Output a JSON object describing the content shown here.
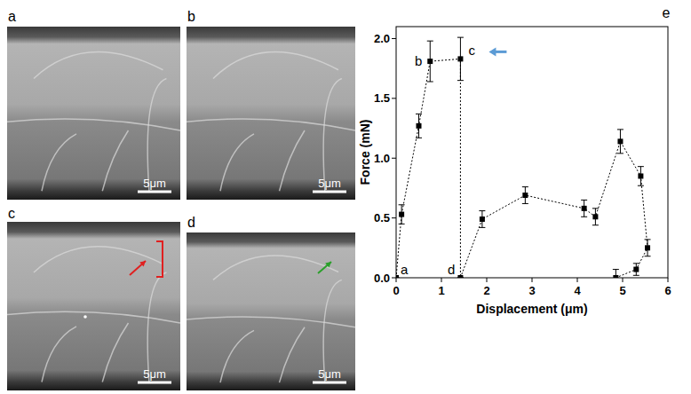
{
  "images": [
    {
      "letter": "a",
      "scale_bar": "5μm"
    },
    {
      "letter": "b",
      "scale_bar": "5μm"
    },
    {
      "letter": "c",
      "scale_bar": "5μm"
    },
    {
      "letter": "d",
      "scale_bar": "5μm"
    }
  ],
  "chart_data": {
    "type": "line",
    "panel_label": "e",
    "x_label": "Displacement (μm)",
    "y_label": "Force (mN)",
    "xlim": [
      0,
      6
    ],
    "ylim": [
      0,
      2.1
    ],
    "xticks": [
      0,
      1,
      2,
      3,
      4,
      5,
      6
    ],
    "yticks": [
      {
        "value": 0,
        "label": "0.0"
      },
      {
        "value": 0.5,
        "label": "0.5"
      },
      {
        "value": 1,
        "label": "1.0"
      },
      {
        "value": 1.5,
        "label": "1.5"
      },
      {
        "value": 2,
        "label": "2.0"
      }
    ],
    "x": [
      0,
      0.12,
      0.5,
      0.75,
      1.42,
      1.42,
      1.9,
      2.85,
      4.15,
      4.4,
      4.95,
      5.4,
      5.55,
      5.3,
      4.85
    ],
    "series": [
      {
        "values": [
          0,
          0.53,
          1.27,
          1.81,
          1.83,
          0,
          0.49,
          0.69,
          0.58,
          0.51,
          1.14,
          0.85,
          0.25,
          0.07,
          0
        ],
        "errors": [
          0,
          0.08,
          0.1,
          0.17,
          0.18,
          0,
          0.07,
          0.07,
          0.07,
          0.07,
          0.1,
          0.08,
          0.07,
          0.05,
          0.07
        ],
        "color": "#000000",
        "marker": "square",
        "line_style": "dotted"
      }
    ],
    "annotations": [
      {
        "text": "a",
        "point": 0
      },
      {
        "text": "b",
        "point": 3
      },
      {
        "text": "c",
        "point": 4,
        "color": "#5b9bd5"
      },
      {
        "text": "d",
        "point": 5
      }
    ]
  }
}
